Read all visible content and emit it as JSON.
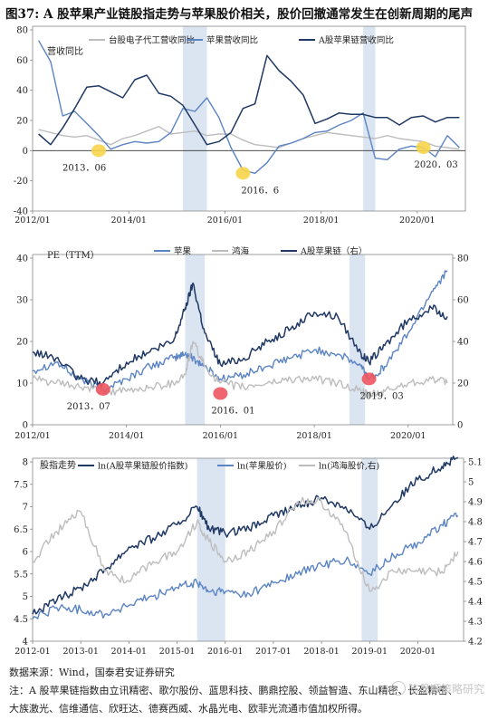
{
  "figure_title": "图37: A 股苹果产业链股指走势与苹果股价相关，股价回撤通常发生在创新周期的尾声",
  "colors": {
    "light_gray": "#bdbdbd",
    "mid_blue": "#5b84c4",
    "dark_navy": "#1f3864",
    "highlight": "#dbe5f2",
    "yellow": "#f7d54a",
    "red": "#ee5560",
    "axis": "#888888"
  },
  "chart_data": [
    {
      "type": "line",
      "title": "营收同比",
      "xlabel": "",
      "ylabel": "",
      "x_ticks": [
        "2012/01",
        "2014/01",
        "2016/01",
        "2018/01",
        "2020/01"
      ],
      "ylim": [
        -40,
        80
      ],
      "y_ticks": [
        -40,
        -20,
        0,
        20,
        40,
        60,
        80
      ],
      "x": [
        "2012Q1",
        "2012Q2",
        "2012Q3",
        "2012Q4",
        "2013Q1",
        "2013Q2",
        "2013Q3",
        "2013Q4",
        "2014Q1",
        "2014Q2",
        "2014Q3",
        "2014Q4",
        "2015Q1",
        "2015Q2",
        "2015Q3",
        "2015Q4",
        "2016Q1",
        "2016Q2",
        "2016Q3",
        "2016Q4",
        "2017Q1",
        "2017Q2",
        "2017Q3",
        "2017Q4",
        "2018Q1",
        "2018Q2",
        "2018Q3",
        "2018Q4",
        "2019Q1",
        "2019Q2",
        "2019Q3",
        "2019Q4",
        "2020Q1",
        "2020Q2",
        "2020Q3",
        "2020Q4"
      ],
      "series": [
        {
          "name": "台股电子代工营收同比",
          "color": "light_gray",
          "values": [
            14,
            12,
            10,
            9,
            10,
            7,
            4,
            8,
            10,
            13,
            16,
            11,
            12,
            13,
            10,
            11,
            11,
            7,
            4,
            3,
            2,
            5,
            8,
            10,
            12,
            11,
            10,
            9,
            8,
            10,
            8,
            7,
            6,
            3,
            2,
            1
          ]
        },
        {
          "name": "苹果营收同比",
          "color": "mid_blue",
          "values": [
            73,
            59,
            23,
            26,
            18,
            10,
            1,
            4,
            6,
            5,
            6,
            12,
            28,
            26,
            35,
            22,
            2,
            -13,
            -15,
            -8,
            3,
            5,
            8,
            12,
            13,
            17,
            20,
            25,
            -5,
            -6,
            1,
            3,
            2,
            -4,
            10,
            2
          ]
        },
        {
          "name": "A股苹果链营收同比",
          "color": "dark_navy",
          "values": [
            11,
            4,
            15,
            28,
            42,
            43,
            39,
            35,
            47,
            50,
            38,
            36,
            30,
            17,
            4,
            6,
            12,
            28,
            31,
            63,
            53,
            46,
            37,
            18,
            21,
            25,
            24,
            24,
            22,
            22,
            17,
            22,
            23,
            19,
            22,
            22
          ]
        }
      ],
      "annotations": [
        {
          "label": "2013．06",
          "x": "2013Q2",
          "y": 0,
          "color": "yellow"
        },
        {
          "label": "2016．6",
          "x": "2016Q2",
          "y": -15,
          "color": "yellow"
        },
        {
          "label": "2020．03",
          "x": "2020Q1",
          "y": 2,
          "color": "yellow"
        }
      ],
      "highlight_bands": [
        [
          "2015Q1",
          "2015Q3"
        ],
        [
          "2018Q4",
          "2019Q1"
        ]
      ]
    },
    {
      "type": "line",
      "title": "PE（TTM）",
      "xlabel": "",
      "ylabel": "",
      "x_ticks": [
        "2012/01",
        "2014/01",
        "2016/01",
        "2018/01",
        "2020/01"
      ],
      "ylim_left": [
        0,
        40
      ],
      "y_ticks_left": [
        0,
        10,
        20,
        30,
        40
      ],
      "ylim_right": [
        0,
        80
      ],
      "y_ticks_right": [
        0,
        20,
        40,
        60,
        80
      ],
      "x": [
        "2012-01",
        "2012-07",
        "2013-01",
        "2013-07",
        "2014-01",
        "2014-07",
        "2015-01",
        "2015-04",
        "2015-06",
        "2015-09",
        "2016-01",
        "2016-07",
        "2017-01",
        "2017-07",
        "2018-01",
        "2018-07",
        "2019-01",
        "2019-03",
        "2019-07",
        "2020-01",
        "2020-07",
        "2020-11"
      ],
      "series": [
        {
          "name": "苹果",
          "axis": "left",
          "color": "mid_blue",
          "values": [
            13,
            15,
            11,
            8.5,
            11,
            14,
            16,
            17,
            16,
            14,
            11,
            12,
            14,
            16,
            18,
            17,
            14,
            11,
            14,
            22,
            32,
            37
          ]
        },
        {
          "name": "鸿海",
          "axis": "left",
          "color": "light_gray",
          "values": [
            11,
            10,
            9,
            8,
            8,
            9,
            10,
            12,
            20,
            14,
            10,
            9,
            10,
            11,
            11,
            10,
            8,
            7,
            8,
            10,
            11,
            10
          ]
        },
        {
          "name": "A股苹果链（右）",
          "axis": "right",
          "color": "dark_navy",
          "values": [
            35,
            32,
            22,
            20,
            30,
            35,
            40,
            56,
            68,
            44,
            29,
            32,
            40,
            46,
            54,
            52,
            34,
            30,
            38,
            50,
            56,
            52
          ]
        }
      ],
      "annotations": [
        {
          "label": "2013．07",
          "x": "2013-07",
          "y": 8.5,
          "color": "red"
        },
        {
          "label": "2016．01",
          "x": "2016-01",
          "y": 7.5,
          "color": "red"
        },
        {
          "label": "2019．03",
          "x": "2019-03",
          "y": 11,
          "color": "red"
        }
      ],
      "highlight_bands": [
        [
          "2015-04",
          "2015-09"
        ],
        [
          "2018-10",
          "2019-02"
        ]
      ]
    },
    {
      "type": "line",
      "title": "股指走势",
      "xlabel": "",
      "ylabel": "",
      "x_ticks": [
        "2012-01",
        "2013-01",
        "2014-01",
        "2015-01",
        "2016-01",
        "2017-01",
        "2018-01",
        "2019-01",
        "2020-01"
      ],
      "ylim_left": [
        4,
        8
      ],
      "y_ticks_left": [
        4,
        4.5,
        5,
        5.5,
        6,
        6.5,
        7,
        7.5,
        8
      ],
      "ylim_right": [
        4.2,
        5.1
      ],
      "y_ticks_right": [
        4.2,
        4.3,
        4.4,
        4.5,
        4.6,
        4.7,
        4.8,
        4.9,
        5,
        5.1
      ],
      "x": [
        "2012-01",
        "2012-07",
        "2013-01",
        "2013-07",
        "2014-01",
        "2014-07",
        "2015-01",
        "2015-06",
        "2015-09",
        "2016-01",
        "2016-07",
        "2017-01",
        "2017-07",
        "2018-01",
        "2018-07",
        "2019-01",
        "2019-07",
        "2020-01",
        "2020-07",
        "2020-11"
      ],
      "series": [
        {
          "name": "ln(A股苹果链股价指数)",
          "axis": "left",
          "color": "dark_navy",
          "values": [
            4.6,
            4.9,
            5.2,
            5.6,
            6.1,
            6.3,
            6.6,
            7.0,
            6.5,
            6.4,
            6.5,
            6.8,
            7.0,
            7.2,
            7.0,
            6.5,
            7.1,
            7.6,
            7.9,
            8.1
          ]
        },
        {
          "name": "ln(苹果股价)",
          "axis": "left",
          "color": "mid_blue",
          "values": [
            4.5,
            4.75,
            4.7,
            4.6,
            4.8,
            5.0,
            5.2,
            5.3,
            5.1,
            5.1,
            5.05,
            5.3,
            5.5,
            5.7,
            5.8,
            5.5,
            5.9,
            6.2,
            6.6,
            6.8
          ]
        },
        {
          "name": "ln(鸿海股价,右)",
          "axis": "right",
          "color": "light_gray",
          "values": [
            4.6,
            4.75,
            4.85,
            4.55,
            4.5,
            4.6,
            4.65,
            4.8,
            4.7,
            4.6,
            4.65,
            4.75,
            4.9,
            4.9,
            4.75,
            4.45,
            4.55,
            4.55,
            4.55,
            4.65
          ]
        }
      ],
      "highlight_bands": [
        [
          "2015-06",
          "2016-01"
        ],
        [
          "2018-11",
          "2019-03"
        ]
      ]
    }
  ],
  "footer": {
    "source": "数据来源：Wind，国泰君安证券研究",
    "note_line1": "注：A 股苹果链指数由立讯精密、歌尔股份、蓝思科技、鹏鼎控股、领益智造、东山精密、长盈精密、",
    "note_line2": "大族激光、信维通信、欣旺达、德赛西威、水晶光电、欧菲光流通市值加权所得。"
  },
  "watermark": "陈显顺策略研究"
}
